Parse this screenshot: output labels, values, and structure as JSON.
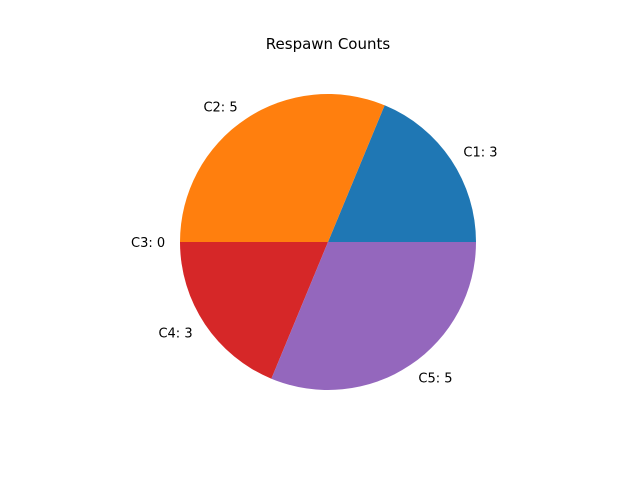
{
  "chart_data": {
    "type": "pie",
    "title": "Respawn Counts",
    "labels": [
      "C1: 3",
      "C2: 5",
      "C3: 0",
      "C4: 3",
      "C5: 5"
    ],
    "categories": [
      "C1",
      "C2",
      "C3",
      "C4",
      "C5"
    ],
    "values": [
      3,
      5,
      0,
      3,
      5
    ],
    "colors": [
      "#1f77b4",
      "#ff7f0e",
      "#2ca02c",
      "#d62728",
      "#9467bd"
    ],
    "start_angle_deg": 0,
    "direction": "counterclockwise",
    "legend": "none"
  }
}
